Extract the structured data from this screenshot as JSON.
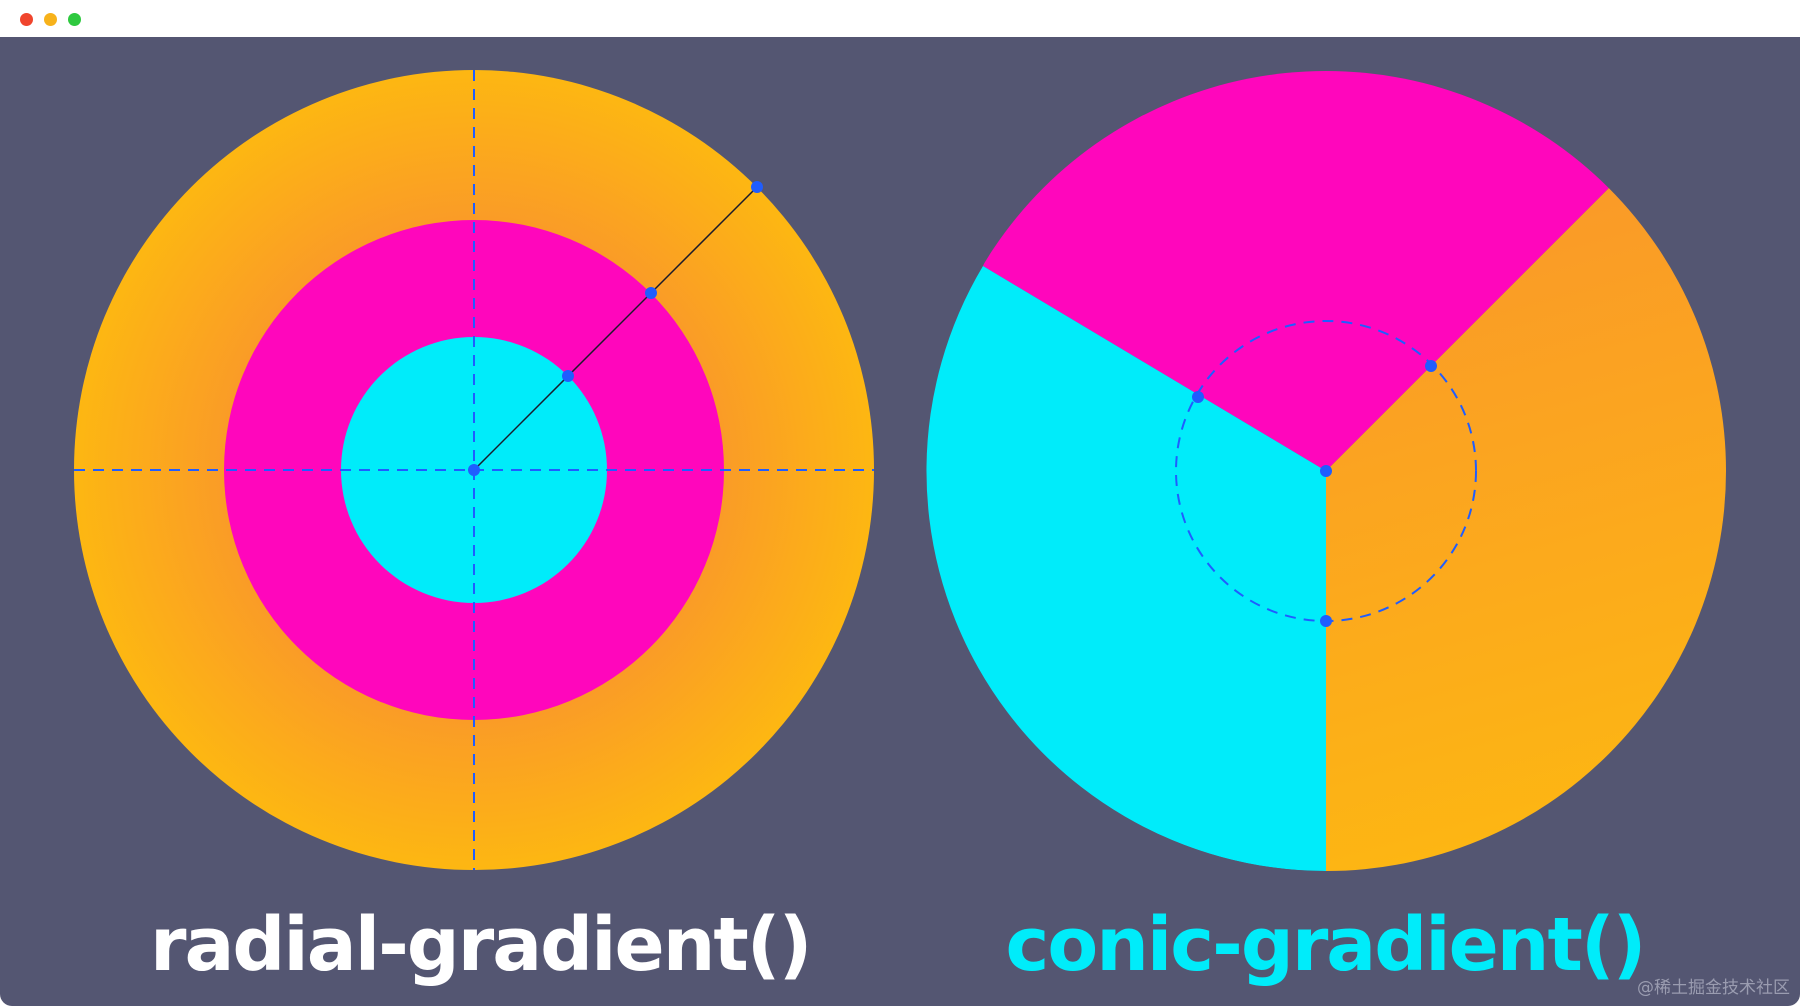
{
  "window": {
    "controls": [
      "close",
      "minimize",
      "maximize"
    ],
    "background": "#545672"
  },
  "radial": {
    "label": "radial-gradient()",
    "label_color": "#ffffff",
    "colors": {
      "outer_ring_edge": "#fdb712",
      "outer_ring_inner": "#fa9a28",
      "middle_ring": "#ff06bc",
      "inner_disc": "#00ecfa"
    }
  },
  "conic": {
    "label": "conic-gradient()",
    "label_color": "#00ecfa",
    "colors": {
      "top_sector": "#ff06bc",
      "right_sector": "#fca81c",
      "left_sector": "#00ecfa"
    }
  },
  "guide_color": "#1f5dff",
  "watermark": "@稀土掘金技术社区"
}
